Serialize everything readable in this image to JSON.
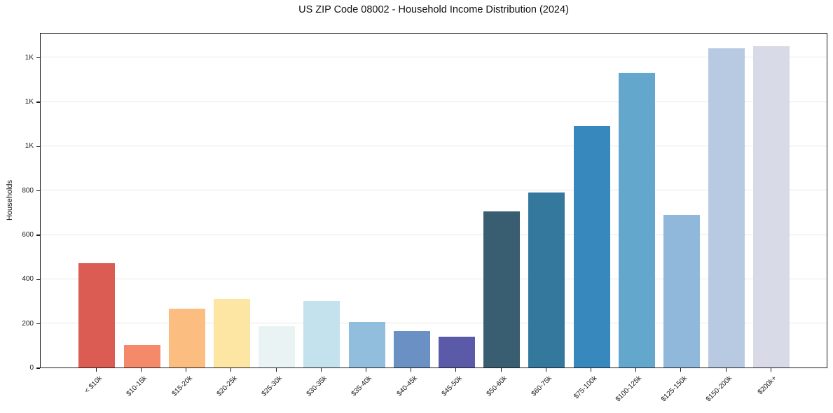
{
  "chart_data": {
    "type": "bar",
    "title": "US ZIP Code 08002 - Household Income Distribution (2024)",
    "xlabel": "",
    "ylabel": "Households",
    "categories": [
      "< $10k",
      "$10-15k",
      "$15-20k",
      "$20-25k",
      "$25-30k",
      "$30-35k",
      "$35-40k",
      "$40-45k",
      "$45-50k",
      "$50-60k",
      "$60-75k",
      "$75-100k",
      "$100-125k",
      "$125-150k",
      "$150-200k",
      "$200k+"
    ],
    "values": [
      470,
      100,
      265,
      310,
      185,
      300,
      205,
      165,
      140,
      705,
      790,
      1090,
      1330,
      690,
      1440,
      1450
    ],
    "bar_colors": [
      "#db5c52",
      "#f48a69",
      "#fbbd80",
      "#fde5a3",
      "#e9f3f3",
      "#c4e1ee",
      "#91bedd",
      "#6a90c4",
      "#5a5aa9",
      "#395e71",
      "#34789d",
      "#3789bd",
      "#63a7cd",
      "#90b8da",
      "#b8c9e2",
      "#d8dae8"
    ],
    "ylim": [
      0,
      1513
    ],
    "yticks": {
      "values": [
        0,
        200,
        400,
        600,
        800,
        1000,
        1200,
        1400
      ],
      "labels": [
        "0",
        "200",
        "400",
        "600",
        "800",
        "1K",
        "1K",
        "1K"
      ]
    },
    "grid": "horizontal",
    "legend": "none"
  }
}
